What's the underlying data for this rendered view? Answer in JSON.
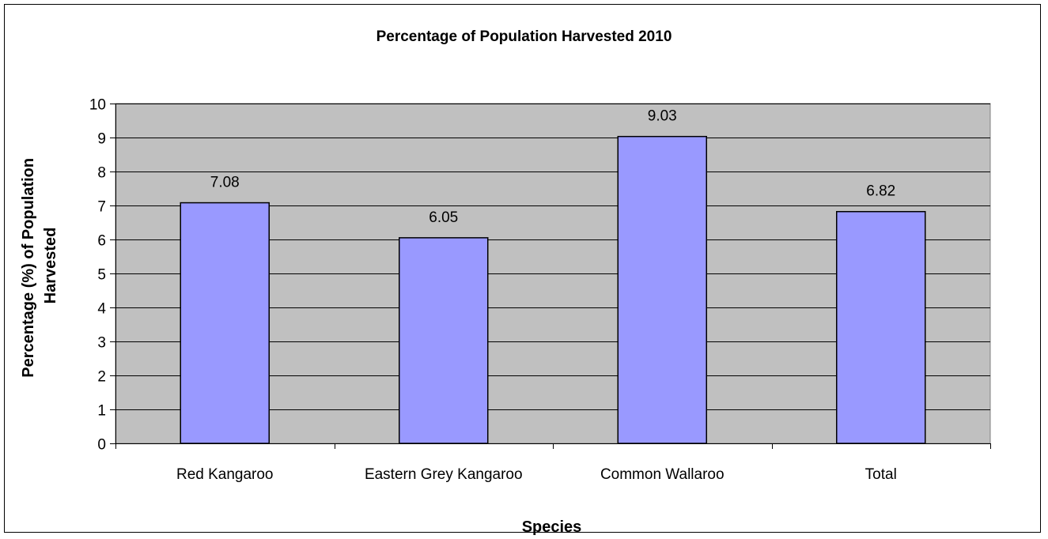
{
  "chart_data": {
    "type": "bar",
    "title": "Percentage of Population Harvested 2010",
    "xlabel": "Species",
    "ylabel_lines": [
      "Percentage (%) of Population",
      "Harvested"
    ],
    "categories": [
      "Red Kangaroo",
      "Eastern Grey Kangaroo",
      "Common Wallaroo",
      "Total"
    ],
    "values": [
      7.08,
      6.05,
      9.03,
      6.82
    ],
    "value_labels": [
      "7.08",
      "6.05",
      "9.03",
      "6.82"
    ],
    "ylim": [
      0,
      10
    ],
    "yticks": [
      0,
      1,
      2,
      3,
      4,
      5,
      6,
      7,
      8,
      9,
      10
    ],
    "grid": true,
    "legend": false,
    "colors": {
      "plot_background": "#C0C0C0",
      "bar_fill": "#9999FF",
      "bar_stroke": "#000000",
      "gridline": "#000000"
    }
  }
}
